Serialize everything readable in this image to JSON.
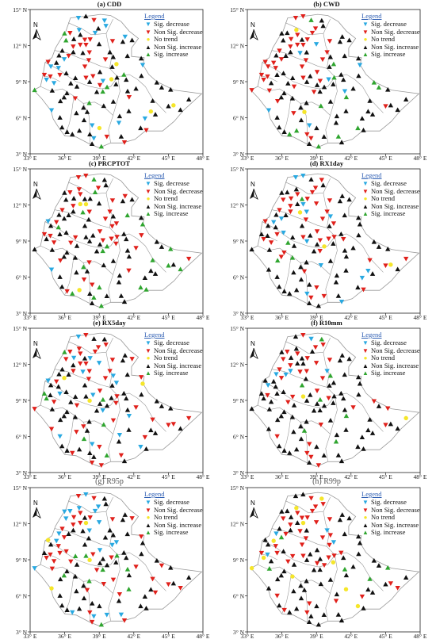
{
  "legend": {
    "title": "Legend",
    "entries": [
      {
        "label": "Sig. decrease",
        "symbol": "▼",
        "color": "#29a9e1"
      },
      {
        "label": "Non Sig. decrease",
        "symbol": "▼",
        "color": "#e0201b"
      },
      {
        "label": "No trend",
        "symbol": "●",
        "color": "#f5e62a"
      },
      {
        "label": "Non Sig. increase",
        "symbol": "▲",
        "color": "#111111"
      },
      {
        "label": "Sig. increase",
        "symbol": "▲",
        "color": "#2fa52f"
      }
    ]
  },
  "north_label": "N",
  "lat_labels": [
    "15° N",
    "12° N",
    "9° N",
    "6° N",
    "3° N"
  ],
  "lon_labels": [
    "33° E",
    "36° E",
    "39° E",
    "42° E",
    "45° E",
    "48° E"
  ],
  "panels": [
    {
      "title": "(a) CDD"
    },
    {
      "title": "(b) CWD"
    },
    {
      "title": "(c) PRCPTOT"
    },
    {
      "title": "(d) RX1day"
    },
    {
      "title": "(e) RX5day"
    },
    {
      "title": "(f) R10mm"
    },
    {
      "title": "(g) R95p"
    },
    {
      "title": "(h) R99p"
    }
  ],
  "colors": {
    "boundary": "#9a9a9a",
    "sig_decrease": "#29a9e1",
    "nonsig_decrease": "#e0201b",
    "no_trend": "#f5e62a",
    "nonsig_increase": "#111111",
    "sig_increase": "#2fa52f"
  }
}
